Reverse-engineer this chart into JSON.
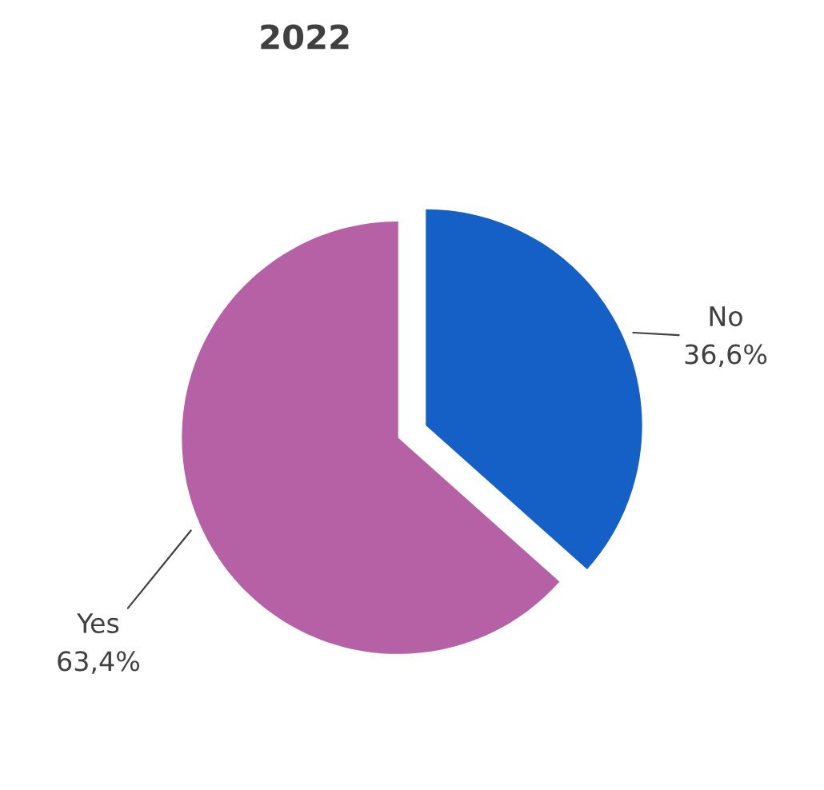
{
  "chart_data": {
    "type": "pie",
    "title": "2022",
    "categories": [
      "No",
      "Yes"
    ],
    "values": [
      36.6,
      63.4
    ],
    "value_labels": [
      "36,6%",
      "63,4%"
    ],
    "colors": [
      "#1560c6",
      "#b660a6"
    ],
    "legend": false
  }
}
